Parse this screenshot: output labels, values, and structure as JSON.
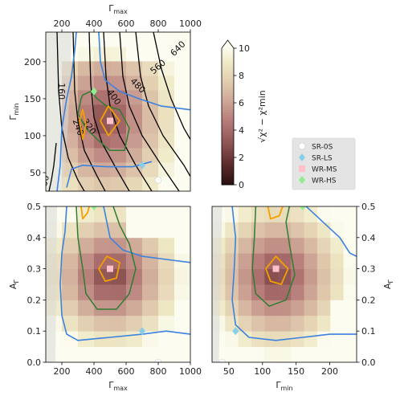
{
  "chart_data": [
    {
      "panel": "top-left",
      "type": "heatmap",
      "xlabel": "Γmax",
      "ylabel": "Γmin",
      "x_axis_position": "top",
      "xlim": [
        100,
        1000
      ],
      "ylim": [
        25,
        240
      ],
      "xticks": [
        200,
        400,
        600,
        800,
        1000
      ],
      "yticks": [
        50,
        100,
        150,
        200
      ],
      "black_contour_levels": [
        "80",
        "160",
        "240",
        "320",
        "400",
        "480",
        "560",
        "640"
      ],
      "markers": [
        {
          "name": "SR-0S",
          "x": 800,
          "y": 40
        },
        {
          "name": "SR-LS",
          "x": 700,
          "y": 60
        },
        {
          "name": "WR-MS",
          "x": 500,
          "y": 120
        },
        {
          "name": "WR-HS",
          "x": 400,
          "y": 160
        }
      ]
    },
    {
      "panel": "bottom-left",
      "type": "heatmap",
      "xlabel": "Γmax",
      "ylabel": "AΓ",
      "xlim": [
        100,
        1000
      ],
      "ylim": [
        0.0,
        0.5
      ],
      "xticks": [
        200,
        400,
        600,
        800,
        1000
      ],
      "yticks": [
        "0.0",
        "0.1",
        "0.2",
        "0.3",
        "0.4",
        "0.5"
      ],
      "markers": [
        {
          "name": "SR-0S",
          "x": 800,
          "y": 0.0
        },
        {
          "name": "SR-LS",
          "x": 700,
          "y": 0.1
        },
        {
          "name": "WR-MS",
          "x": 500,
          "y": 0.3
        },
        {
          "name": "WR-HS",
          "x": 400,
          "y": 0.5
        }
      ]
    },
    {
      "panel": "bottom-right",
      "type": "heatmap",
      "xlabel": "Γmin",
      "ylabel": "AΓ",
      "y_axis_position": "right",
      "xlim": [
        25,
        240
      ],
      "ylim": [
        0.0,
        0.5
      ],
      "xticks": [
        50,
        100,
        150,
        200
      ],
      "yticks": [
        "0.0",
        "0.1",
        "0.2",
        "0.3",
        "0.4",
        "0.5"
      ],
      "markers": [
        {
          "name": "SR-0S",
          "x": 40,
          "y": 0.0
        },
        {
          "name": "SR-LS",
          "x": 60,
          "y": 0.1
        },
        {
          "name": "WR-MS",
          "x": 120,
          "y": 0.3
        },
        {
          "name": "WR-HS",
          "x": 160,
          "y": 0.5
        }
      ]
    }
  ],
  "colorbar": {
    "label": "√χ² − χ²min",
    "min": 0,
    "max": 10,
    "ticks": [
      "0",
      "2",
      "4",
      "6",
      "8",
      "10"
    ],
    "extend": "max"
  },
  "legend": {
    "placement": "right-middle",
    "entries": [
      {
        "label": "SR-0S",
        "color": "#ffffff",
        "edge": "#cccccc",
        "marker": "circle"
      },
      {
        "label": "SR-LS",
        "color": "#87ceeb",
        "edge": "#87ceeb",
        "marker": "diamond"
      },
      {
        "label": "WR-MS",
        "color": "#ffc0cb",
        "edge": "#ffc0cb",
        "marker": "square"
      },
      {
        "label": "WR-HS",
        "color": "#90ee90",
        "edge": "#90ee90",
        "marker": "diamond"
      }
    ]
  },
  "contour_colors": {
    "blue": "#3b82e0",
    "green": "#2e7d32",
    "orange": "#f5a000",
    "black": "#000000"
  }
}
